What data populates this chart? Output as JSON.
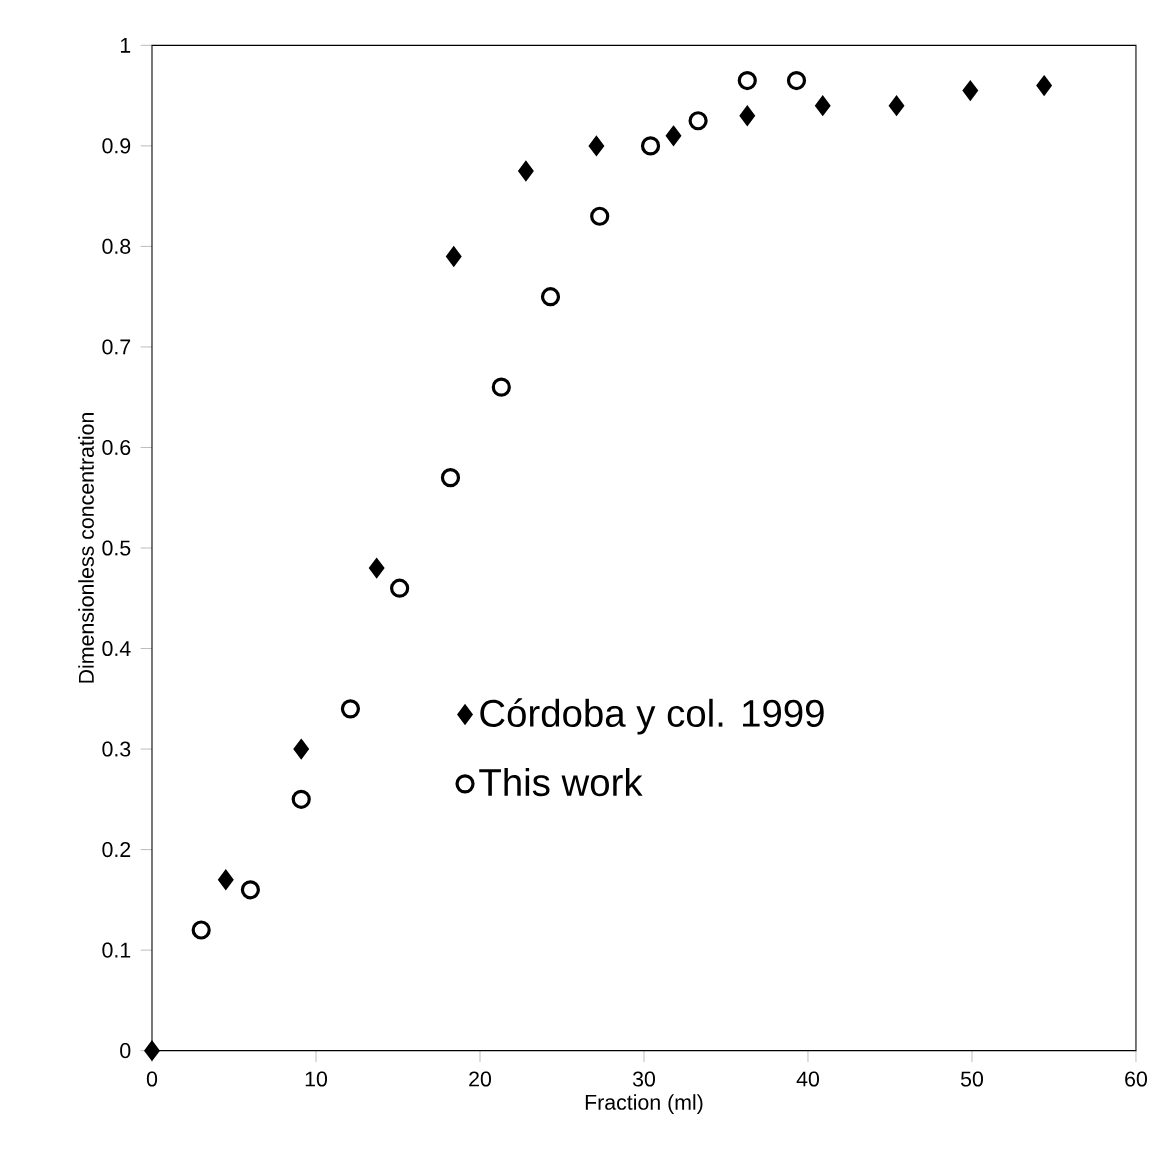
{
  "chart_data": {
    "type": "scatter",
    "xlabel": "Fraction (ml)",
    "ylabel": "Dimensionless concentration",
    "xlim": [
      0,
      60
    ],
    "xticks": [
      0,
      10,
      20,
      30,
      40,
      50,
      60
    ],
    "ylim": [
      0,
      1
    ],
    "yticks": [
      0,
      0.1,
      0.2,
      0.3,
      0.4,
      0.5,
      0.6,
      0.7,
      0.8,
      0.9,
      1
    ],
    "grid": false,
    "legend": "center",
    "series": [
      {
        "name": "Córdoba  y col. 1999",
        "color": "#000000",
        "marker": "diamond",
        "x": [
          0,
          4.5,
          9.1,
          13.7,
          18.4,
          22.8,
          27.1,
          31.8,
          36.3,
          40.9,
          45.4,
          49.9,
          54.4
        ],
        "values": [
          0,
          0.17,
          0.3,
          0.48,
          0.79,
          0.875,
          0.9,
          0.91,
          0.93,
          0.94,
          0.94,
          0.955,
          0.96
        ]
      },
      {
        "name": "This work",
        "color": "#000000",
        "marker": "circle",
        "x": [
          3.0,
          6.0,
          9.1,
          12.1,
          15.1,
          18.2,
          21.3,
          24.3,
          27.3,
          30.4,
          33.3,
          36.3,
          39.3
        ],
        "values": [
          0.12,
          0.16,
          0.25,
          0.34,
          0.46,
          0.57,
          0.66,
          0.75,
          0.83,
          0.9,
          0.925,
          0.965,
          0.965
        ]
      }
    ]
  }
}
